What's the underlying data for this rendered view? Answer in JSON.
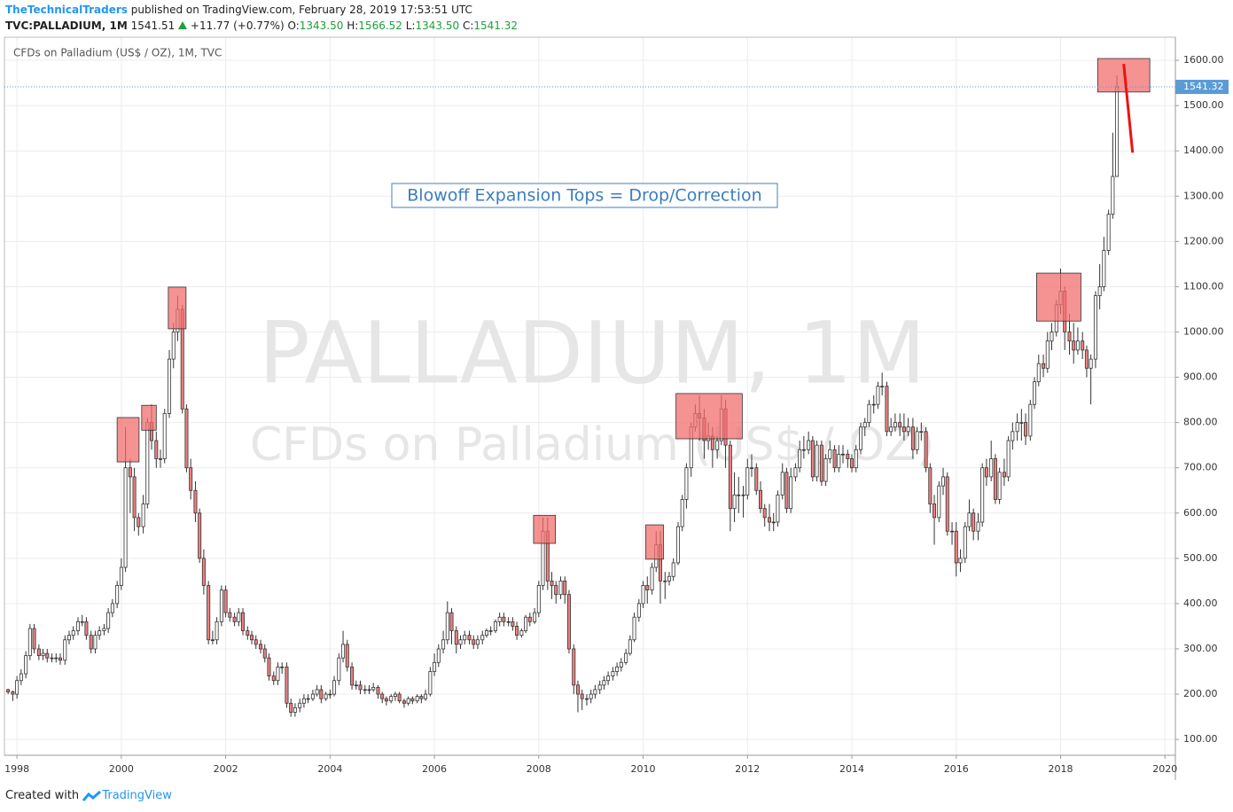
{
  "header": {
    "author": "TheTechnicalTraders",
    "published": "published on TradingView.com, February 28, 2019 17:53:51 UTC",
    "symbol": "TVC:PALLADIUM, 1M",
    "price": "1541.51",
    "change": "+11.77 (+0.77%)",
    "o_label": "O:",
    "o": "1343.50",
    "h_label": "H:",
    "h": "1566.52",
    "l_label": "L:",
    "l": "1343.50",
    "c_label": "C:",
    "c": "1541.32"
  },
  "footer": {
    "created": "Created with",
    "brand": "TradingView"
  },
  "chart_data": {
    "type": "candlestick",
    "legend": "CFDs on Palladium (US$ / OZ), 1M, TVC",
    "watermark": [
      "PALLADIUM, 1M",
      "CFDs on Palladium (US$ / OZ)"
    ],
    "annotation": "Blowoff Expansion Tops = Drop/Correction",
    "xlim": [
      1997.76,
      2020.2
    ],
    "ylim": [
      65,
      1651
    ],
    "xticks": [
      1998,
      2000,
      2002,
      2004,
      2006,
      2008,
      2010,
      2012,
      2014,
      2016,
      2018,
      2020
    ],
    "yticks": [
      {
        "value": 100,
        "label": "100.00"
      },
      {
        "value": 200,
        "label": "200.00"
      },
      {
        "value": 300,
        "label": "300.00"
      },
      {
        "value": 400,
        "label": "400.00"
      },
      {
        "value": 500,
        "label": "500.00"
      },
      {
        "value": 600,
        "label": "600.00"
      },
      {
        "value": 700,
        "label": "700.00"
      },
      {
        "value": 800,
        "label": "800.00"
      },
      {
        "value": 900,
        "label": "900.00"
      },
      {
        "value": 1000,
        "label": "1000.00"
      },
      {
        "value": 1100,
        "label": "1100.00"
      },
      {
        "value": 1200,
        "label": "1200.00"
      },
      {
        "value": 1300,
        "label": "1300.00"
      },
      {
        "value": 1400,
        "label": "1400.00"
      },
      {
        "value": 1500,
        "label": "1500.00"
      },
      {
        "value": 1600,
        "label": "1600.00"
      }
    ],
    "grid": true,
    "up_color": "#ffffff",
    "down_color": "#ef7f7f",
    "border_color": "#333333",
    "last_price": 1541.32,
    "last_price_color": "#5b9bd5",
    "highlight_color": "#f26d6d",
    "trend_color": "#ee1111",
    "highlight_boxes": [
      {
        "x": [
          1999.92,
          2000.34
        ],
        "y": [
          713,
          811
        ]
      },
      {
        "x": [
          2000.39,
          2000.67
        ],
        "y": [
          783,
          838
        ]
      },
      {
        "x": [
          2000.9,
          2001.24
        ],
        "y": [
          1007,
          1099
        ]
      },
      {
        "x": [
          2007.9,
          2008.32
        ],
        "y": [
          533,
          595
        ]
      },
      {
        "x": [
          2010.05,
          2010.39
        ],
        "y": [
          498,
          574
        ]
      },
      {
        "x": [
          2010.63,
          2011.9
        ],
        "y": [
          764,
          864
        ]
      },
      {
        "x": [
          2017.54,
          2018.39
        ],
        "y": [
          1024,
          1130
        ]
      },
      {
        "x": [
          2018.71,
          2019.71
        ],
        "y": [
          1530,
          1604
        ]
      }
    ],
    "trend_line": {
      "x": [
        2019.21,
        2019.38
      ],
      "y": [
        1592,
        1396
      ]
    },
    "x": [
      1997.83,
      1997.92,
      1998.0,
      1998.08,
      1998.17,
      1998.25,
      1998.33,
      1998.42,
      1998.5,
      1998.58,
      1998.67,
      1998.75,
      1998.83,
      1998.92,
      1999.0,
      1999.08,
      1999.17,
      1999.25,
      1999.33,
      1999.42,
      1999.5,
      1999.58,
      1999.67,
      1999.75,
      1999.83,
      1999.92,
      2000.0,
      2000.08,
      2000.17,
      2000.25,
      2000.33,
      2000.42,
      2000.5,
      2000.58,
      2000.67,
      2000.75,
      2000.83,
      2000.92,
      2001.0,
      2001.08,
      2001.17,
      2001.25,
      2001.33,
      2001.42,
      2001.5,
      2001.58,
      2001.67,
      2001.75,
      2001.83,
      2001.92,
      2002.0,
      2002.08,
      2002.17,
      2002.25,
      2002.33,
      2002.42,
      2002.5,
      2002.58,
      2002.67,
      2002.75,
      2002.83,
      2002.92,
      2003.0,
      2003.08,
      2003.17,
      2003.25,
      2003.33,
      2003.42,
      2003.5,
      2003.58,
      2003.67,
      2003.75,
      2003.83,
      2003.92,
      2004.0,
      2004.08,
      2004.17,
      2004.25,
      2004.33,
      2004.42,
      2004.5,
      2004.58,
      2004.67,
      2004.75,
      2004.83,
      2004.92,
      2005.0,
      2005.08,
      2005.17,
      2005.25,
      2005.33,
      2005.42,
      2005.5,
      2005.58,
      2005.67,
      2005.75,
      2005.83,
      2005.92,
      2006.0,
      2006.08,
      2006.17,
      2006.25,
      2006.33,
      2006.42,
      2006.5,
      2006.58,
      2006.67,
      2006.75,
      2006.83,
      2006.92,
      2007.0,
      2007.08,
      2007.17,
      2007.25,
      2007.33,
      2007.42,
      2007.5,
      2007.58,
      2007.67,
      2007.75,
      2007.83,
      2007.92,
      2008.0,
      2008.08,
      2008.17,
      2008.25,
      2008.33,
      2008.42,
      2008.5,
      2008.58,
      2008.67,
      2008.75,
      2008.83,
      2008.92,
      2009.0,
      2009.08,
      2009.17,
      2009.25,
      2009.33,
      2009.42,
      2009.5,
      2009.58,
      2009.67,
      2009.75,
      2009.83,
      2009.92,
      2010.0,
      2010.08,
      2010.17,
      2010.25,
      2010.33,
      2010.42,
      2010.5,
      2010.58,
      2010.67,
      2010.75,
      2010.83,
      2010.92,
      2011.0,
      2011.08,
      2011.17,
      2011.25,
      2011.33,
      2011.42,
      2011.5,
      2011.58,
      2011.67,
      2011.75,
      2011.83,
      2011.92,
      2012.0,
      2012.08,
      2012.17,
      2012.25,
      2012.33,
      2012.42,
      2012.5,
      2012.58,
      2012.67,
      2012.75,
      2012.83,
      2012.92,
      2013.0,
      2013.08,
      2013.17,
      2013.25,
      2013.33,
      2013.42,
      2013.5,
      2013.58,
      2013.67,
      2013.75,
      2013.83,
      2013.92,
      2014.0,
      2014.08,
      2014.17,
      2014.25,
      2014.33,
      2014.42,
      2014.5,
      2014.58,
      2014.67,
      2014.75,
      2014.83,
      2014.92,
      2015.0,
      2015.08,
      2015.17,
      2015.25,
      2015.33,
      2015.42,
      2015.5,
      2015.58,
      2015.67,
      2015.75,
      2015.83,
      2015.92,
      2016.0,
      2016.08,
      2016.17,
      2016.25,
      2016.33,
      2016.42,
      2016.5,
      2016.58,
      2016.67,
      2016.75,
      2016.83,
      2016.92,
      2017.0,
      2017.08,
      2017.17,
      2017.25,
      2017.33,
      2017.42,
      2017.5,
      2017.58,
      2017.67,
      2017.75,
      2017.83,
      2017.92,
      2018.0,
      2018.08,
      2018.17,
      2018.25,
      2018.33,
      2018.42,
      2018.5,
      2018.58,
      2018.67,
      2018.75,
      2018.83,
      2018.92,
      2019.0,
      2019.08
    ],
    "open": [
      210,
      205,
      200,
      230,
      245,
      285,
      345,
      300,
      285,
      290,
      280,
      280,
      280,
      275,
      320,
      330,
      340,
      360,
      360,
      330,
      300,
      330,
      340,
      345,
      380,
      400,
      440,
      480,
      700,
      680,
      590,
      570,
      620,
      800,
      760,
      720,
      720,
      820,
      940,
      1000,
      1050,
      830,
      700,
      650,
      600,
      500,
      440,
      320,
      320,
      360,
      430,
      380,
      370,
      360,
      380,
      340,
      330,
      320,
      310,
      300,
      280,
      240,
      230,
      260,
      260,
      180,
      160,
      170,
      180,
      190,
      190,
      200,
      210,
      190,
      200,
      200,
      230,
      280,
      310,
      260,
      220,
      220,
      210,
      210,
      210,
      215,
      200,
      190,
      185,
      195,
      200,
      185,
      180,
      190,
      185,
      195,
      190,
      200,
      250,
      270,
      300,
      320,
      380,
      340,
      310,
      320,
      330,
      320,
      310,
      320,
      330,
      340,
      340,
      360,
      370,
      360,
      360,
      350,
      330,
      340,
      370,
      360,
      380,
      440,
      560,
      450,
      440,
      420,
      450,
      420,
      300,
      220,
      200,
      190,
      190,
      200,
      210,
      220,
      230,
      240,
      250,
      260,
      270,
      290,
      320,
      370,
      400,
      440,
      430,
      480,
      530,
      450,
      450,
      460,
      490,
      570,
      630,
      700,
      790,
      820,
      810,
      760,
      770,
      740,
      760,
      830,
      750,
      610,
      640,
      640,
      640,
      700,
      700,
      650,
      610,
      590,
      580,
      580,
      640,
      690,
      610,
      680,
      700,
      740,
      740,
      760,
      680,
      750,
      670,
      720,
      740,
      700,
      730,
      730,
      720,
      700,
      740,
      790,
      800,
      840,
      840,
      880,
      880,
      780,
      790,
      800,
      790,
      780,
      790,
      740,
      780,
      780,
      700,
      620,
      590,
      660,
      680,
      560,
      560,
      490,
      500,
      570,
      600,
      560,
      580,
      700,
      680,
      720,
      630,
      690,
      680,
      760,
      780,
      800,
      800,
      770,
      840,
      890,
      930,
      920,
      980,
      1000,
      1060,
      1090,
      1000,
      980,
      960,
      980,
      960,
      920,
      940,
      1080,
      1100,
      1180,
      1260,
      1343.5
    ],
    "high": [
      212,
      208,
      240,
      255,
      295,
      355,
      355,
      310,
      300,
      300,
      290,
      290,
      290,
      330,
      340,
      350,
      370,
      375,
      370,
      340,
      340,
      350,
      355,
      390,
      410,
      450,
      500,
      790,
      720,
      700,
      600,
      640,
      810,
      840,
      780,
      740,
      830,
      960,
      1020,
      1080,
      1060,
      840,
      720,
      670,
      610,
      520,
      450,
      340,
      370,
      440,
      440,
      390,
      380,
      390,
      390,
      350,
      340,
      330,
      320,
      310,
      290,
      250,
      270,
      270,
      270,
      190,
      180,
      190,
      200,
      200,
      210,
      220,
      220,
      205,
      210,
      240,
      290,
      340,
      320,
      270,
      230,
      230,
      220,
      220,
      225,
      220,
      205,
      195,
      200,
      205,
      205,
      190,
      195,
      195,
      200,
      200,
      210,
      260,
      290,
      310,
      340,
      405,
      390,
      350,
      330,
      340,
      340,
      330,
      330,
      340,
      345,
      350,
      365,
      380,
      380,
      370,
      370,
      360,
      345,
      375,
      380,
      390,
      450,
      590,
      590,
      470,
      450,
      460,
      460,
      430,
      310,
      230,
      210,
      200,
      210,
      220,
      230,
      240,
      250,
      260,
      270,
      280,
      300,
      330,
      380,
      410,
      450,
      460,
      490,
      560,
      560,
      470,
      470,
      500,
      580,
      640,
      710,
      800,
      840,
      860,
      830,
      800,
      790,
      770,
      860,
      850,
      760,
      690,
      680,
      660,
      720,
      730,
      710,
      670,
      620,
      620,
      600,
      650,
      710,
      700,
      700,
      710,
      760,
      770,
      780,
      770,
      760,
      760,
      730,
      760,
      750,
      750,
      750,
      740,
      730,
      750,
      800,
      810,
      850,
      860,
      890,
      910,
      890,
      810,
      820,
      820,
      820,
      810,
      810,
      790,
      800,
      790,
      710,
      640,
      670,
      700,
      690,
      580,
      580,
      520,
      580,
      630,
      610,
      600,
      710,
      720,
      760,
      730,
      700,
      720,
      770,
      800,
      820,
      830,
      820,
      850,
      900,
      950,
      950,
      1000,
      1020,
      1070,
      1140,
      1100,
      1040,
      1020,
      1010,
      1000,
      970,
      950,
      1090,
      1150,
      1210,
      1270,
      1440,
      1566.52
    ],
    "low": [
      200,
      185,
      190,
      220,
      235,
      275,
      290,
      275,
      275,
      270,
      270,
      270,
      265,
      265,
      310,
      320,
      330,
      350,
      320,
      290,
      290,
      320,
      330,
      335,
      370,
      390,
      430,
      470,
      600,
      560,
      550,
      555,
      610,
      740,
      700,
      700,
      710,
      810,
      920,
      980,
      820,
      690,
      630,
      580,
      490,
      420,
      310,
      310,
      310,
      350,
      370,
      360,
      350,
      350,
      330,
      320,
      310,
      300,
      290,
      270,
      230,
      220,
      220,
      245,
      170,
      150,
      150,
      160,
      170,
      180,
      185,
      195,
      180,
      185,
      190,
      195,
      220,
      270,
      250,
      210,
      210,
      200,
      200,
      200,
      205,
      190,
      180,
      175,
      180,
      185,
      180,
      170,
      175,
      178,
      180,
      180,
      185,
      195,
      240,
      260,
      290,
      310,
      310,
      290,
      300,
      310,
      310,
      300,
      300,
      310,
      325,
      330,
      335,
      350,
      350,
      350,
      340,
      320,
      325,
      335,
      350,
      355,
      370,
      430,
      430,
      410,
      400,
      410,
      400,
      290,
      200,
      160,
      165,
      175,
      180,
      190,
      200,
      210,
      220,
      230,
      240,
      250,
      265,
      285,
      315,
      360,
      390,
      400,
      420,
      470,
      400,
      410,
      440,
      450,
      485,
      560,
      610,
      680,
      780,
      760,
      720,
      740,
      700,
      720,
      750,
      700,
      560,
      580,
      600,
      590,
      630,
      680,
      640,
      600,
      570,
      560,
      560,
      570,
      630,
      600,
      600,
      670,
      690,
      720,
      730,
      670,
      670,
      660,
      660,
      710,
      690,
      690,
      710,
      700,
      690,
      690,
      730,
      770,
      790,
      820,
      830,
      860,
      770,
      770,
      780,
      770,
      760,
      770,
      720,
      730,
      760,
      690,
      600,
      530,
      580,
      640,
      550,
      530,
      460,
      470,
      490,
      560,
      540,
      540,
      570,
      660,
      670,
      620,
      620,
      660,
      670,
      740,
      760,
      760,
      750,
      760,
      830,
      880,
      900,
      910,
      960,
      990,
      1040,
      960,
      950,
      930,
      950,
      940,
      900,
      840,
      920,
      1050,
      1090,
      1170,
      1250,
      1343.5
    ],
    "close": [
      205,
      200,
      230,
      245,
      285,
      345,
      300,
      285,
      290,
      280,
      280,
      280,
      275,
      320,
      330,
      340,
      360,
      360,
      330,
      300,
      330,
      340,
      345,
      380,
      400,
      440,
      480,
      700,
      680,
      590,
      570,
      620,
      800,
      760,
      720,
      720,
      820,
      940,
      1000,
      1050,
      830,
      700,
      650,
      600,
      500,
      440,
      320,
      320,
      360,
      430,
      380,
      370,
      360,
      380,
      340,
      330,
      320,
      310,
      300,
      280,
      240,
      230,
      260,
      260,
      180,
      160,
      170,
      180,
      190,
      190,
      200,
      210,
      190,
      200,
      200,
      230,
      280,
      310,
      260,
      220,
      220,
      210,
      210,
      210,
      215,
      200,
      190,
      185,
      195,
      200,
      185,
      180,
      190,
      185,
      195,
      190,
      200,
      250,
      270,
      300,
      320,
      380,
      340,
      310,
      320,
      330,
      320,
      310,
      320,
      330,
      340,
      340,
      360,
      370,
      360,
      360,
      350,
      330,
      340,
      370,
      360,
      380,
      440,
      560,
      450,
      440,
      420,
      450,
      420,
      300,
      220,
      200,
      190,
      190,
      200,
      210,
      220,
      230,
      240,
      250,
      260,
      270,
      290,
      320,
      370,
      400,
      440,
      430,
      480,
      530,
      450,
      450,
      460,
      490,
      570,
      630,
      700,
      790,
      820,
      810,
      760,
      770,
      740,
      760,
      830,
      750,
      610,
      640,
      640,
      640,
      700,
      700,
      650,
      610,
      590,
      580,
      580,
      640,
      690,
      610,
      680,
      700,
      740,
      740,
      760,
      680,
      750,
      670,
      720,
      740,
      700,
      730,
      730,
      720,
      700,
      740,
      790,
      800,
      840,
      840,
      880,
      880,
      780,
      790,
      800,
      790,
      780,
      790,
      740,
      780,
      780,
      700,
      620,
      590,
      660,
      680,
      560,
      560,
      490,
      500,
      570,
      600,
      560,
      580,
      700,
      680,
      720,
      630,
      690,
      680,
      760,
      780,
      800,
      800,
      770,
      840,
      890,
      930,
      920,
      980,
      1000,
      1060,
      1090,
      1000,
      980,
      960,
      980,
      960,
      920,
      940,
      1080,
      1100,
      1180,
      1260,
      1343.5,
      1541.32
    ]
  }
}
